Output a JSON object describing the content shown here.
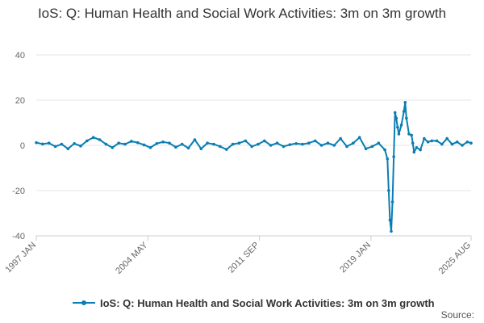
{
  "chart_data": {
    "type": "line",
    "title": "IoS: Q: Human Health and Social Work Activities: 3m on 3m growth",
    "xlabel": "",
    "ylabel": "",
    "ylim": [
      -40,
      40
    ],
    "yticks": [
      "40",
      "20",
      "0",
      "-20",
      "-40"
    ],
    "xticks": [
      "1997 JAN",
      "2004 MAY",
      "2011 SEP",
      "2019 JAN",
      "2025 AUG"
    ],
    "grid": true,
    "legend": "bottom",
    "source_label": "Source:",
    "colors": {
      "series": "#0a7db3",
      "grid": "#e6e6e6",
      "axis": "#cccccc"
    },
    "series": [
      {
        "name": "IoS: Q: Human Health and Social Work Activities: 3m on 3m growth",
        "points": [
          [
            "1997-01",
            1.2
          ],
          [
            "1997-06",
            0.6
          ],
          [
            "1997-11",
            1.0
          ],
          [
            "1998-04",
            -0.5
          ],
          [
            "1998-09",
            0.5
          ],
          [
            "1999-02",
            -1.5
          ],
          [
            "1999-07",
            0.8
          ],
          [
            "1999-12",
            -0.3
          ],
          [
            "2000-05",
            2.0
          ],
          [
            "2000-10",
            3.5
          ],
          [
            "2001-03",
            2.5
          ],
          [
            "2001-08",
            0.5
          ],
          [
            "2002-01",
            -1.0
          ],
          [
            "2002-06",
            1.0
          ],
          [
            "2002-11",
            0.5
          ],
          [
            "2003-04",
            1.8
          ],
          [
            "2003-09",
            1.2
          ],
          [
            "2004-02",
            0.2
          ],
          [
            "2004-07",
            -1.0
          ],
          [
            "2004-12",
            0.8
          ],
          [
            "2005-05",
            1.5
          ],
          [
            "2005-10",
            1.0
          ],
          [
            "2006-03",
            -0.8
          ],
          [
            "2006-08",
            0.5
          ],
          [
            "2007-01",
            -1.2
          ],
          [
            "2007-06",
            2.5
          ],
          [
            "2007-11",
            -1.5
          ],
          [
            "2008-04",
            1.0
          ],
          [
            "2008-09",
            0.5
          ],
          [
            "2009-02",
            -0.5
          ],
          [
            "2009-07",
            -1.8
          ],
          [
            "2009-12",
            0.5
          ],
          [
            "2010-05",
            1.0
          ],
          [
            "2010-10",
            2.0
          ],
          [
            "2011-03",
            -0.5
          ],
          [
            "2011-08",
            0.5
          ],
          [
            "2012-01",
            2.0
          ],
          [
            "2012-06",
            0.0
          ],
          [
            "2012-11",
            1.0
          ],
          [
            "2013-04",
            -0.5
          ],
          [
            "2013-09",
            0.3
          ],
          [
            "2014-02",
            0.8
          ],
          [
            "2014-07",
            0.5
          ],
          [
            "2014-12",
            1.0
          ],
          [
            "2015-05",
            2.0
          ],
          [
            "2015-10",
            0.0
          ],
          [
            "2016-03",
            1.0
          ],
          [
            "2016-08",
            0.0
          ],
          [
            "2017-01",
            3.0
          ],
          [
            "2017-06",
            -0.5
          ],
          [
            "2017-11",
            1.0
          ],
          [
            "2018-04",
            3.5
          ],
          [
            "2018-09",
            -1.5
          ],
          [
            "2019-02",
            -0.5
          ],
          [
            "2019-07",
            1.0
          ],
          [
            "2019-12",
            -2.0
          ],
          [
            "2020-02",
            -6.0
          ],
          [
            "2020-03",
            -20.0
          ],
          [
            "2020-04",
            -33.0
          ],
          [
            "2020-05",
            -38.0
          ],
          [
            "2020-06",
            -25.0
          ],
          [
            "2020-07",
            -5.0
          ],
          [
            "2020-08",
            14.5
          ],
          [
            "2020-09",
            12.0
          ],
          [
            "2020-10",
            8.0
          ],
          [
            "2020-11",
            5.0
          ],
          [
            "2021-01",
            9.0
          ],
          [
            "2021-03",
            15.0
          ],
          [
            "2021-04",
            19.0
          ],
          [
            "2021-05",
            12.0
          ],
          [
            "2021-07",
            5.0
          ],
          [
            "2021-09",
            4.5
          ],
          [
            "2021-10",
            1.0
          ],
          [
            "2021-11",
            -3.0
          ],
          [
            "2022-01",
            -1.0
          ],
          [
            "2022-04",
            -2.0
          ],
          [
            "2022-07",
            3.0
          ],
          [
            "2022-10",
            1.5
          ],
          [
            "2023-01",
            2.0
          ],
          [
            "2023-05",
            2.0
          ],
          [
            "2023-09",
            0.5
          ],
          [
            "2024-01",
            3.0
          ],
          [
            "2024-05",
            0.5
          ],
          [
            "2024-09",
            1.5
          ],
          [
            "2025-01",
            0.0
          ],
          [
            "2025-05",
            1.5
          ],
          [
            "2025-08",
            1.0
          ]
        ]
      }
    ]
  }
}
